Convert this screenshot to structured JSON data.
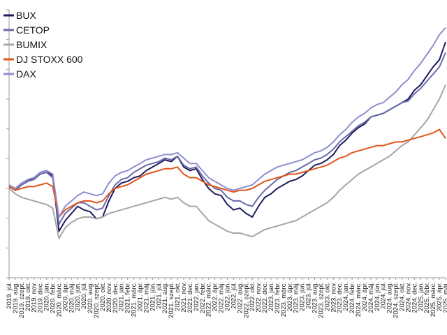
{
  "chart_data": {
    "type": "line",
    "title": "",
    "xlabel": "",
    "ylabel": "",
    "grid": false,
    "legend_position": "top-left",
    "x_tick_labels": [
      "2019. júl.",
      "2019. aug.",
      "2019. szept.",
      "2019. okt.",
      "2019. nov.",
      "2019. dec.",
      "2020. jan.",
      "2020. febr.",
      "2020. márc.",
      "2020. ápr.",
      "2020. máj.",
      "2020. jún.",
      "2020. júl.",
      "2020. aug.",
      "2020. szept.",
      "2020. okt.",
      "2020. nov.",
      "2020. dec.",
      "2021. jan.",
      "2021. febr.",
      "2021. márc.",
      "2021. ápr.",
      "2021. máj.",
      "2021. jún.",
      "2021. júl.",
      "2021. aug.",
      "2021. szept.",
      "2021. okt.",
      "2021. nov.",
      "2021. dec.",
      "2022. jan.",
      "2022. febr.",
      "2022. márc.",
      "2022. ápr.",
      "2022. máj.",
      "2022. jún.",
      "2022. júl.",
      "2022. aug.",
      "2022. szept.",
      "2022. okt.",
      "2022. nov.",
      "2022. dec.",
      "2023. jan.",
      "2023. febr.",
      "2023. márc.",
      "2023. ápr.",
      "2023. máj.",
      "2023. jún.",
      "2023. júl.",
      "2023. aug.",
      "2023. szept.",
      "2023. okt.",
      "2023. nov.",
      "2023. dec.",
      "2024. jan.",
      "2024. febr.",
      "2024. márc.",
      "2024. ápr.",
      "2024. máj.",
      "2024. jún.",
      "2024. júl.",
      "2024. aug.",
      "2024. szept.",
      "2024. okt.",
      "2024. nov.",
      "2024. dec.",
      "2025. jan.",
      "2025. febr.",
      "2025. márc.",
      "2025. ápr.",
      "2025. máj."
    ],
    "y_axis_ticks": 9,
    "series": [
      {
        "name": "BUX",
        "color": "#1c1c5e",
        "values": [
          101,
          99,
          102,
          104,
          106,
          109,
          110,
          107,
          76,
          82,
          86,
          90,
          88,
          87,
          83,
          84,
          93,
          100,
          103,
          104,
          106,
          107,
          110,
          112,
          114,
          116,
          115,
          118,
          112,
          110,
          111,
          105,
          100,
          97,
          96,
          91,
          88,
          89,
          86,
          84,
          90,
          95,
          97,
          100,
          102,
          104,
          105,
          107,
          110,
          113,
          114,
          116,
          119,
          124,
          127,
          131,
          134,
          136,
          140,
          141,
          142,
          144,
          146,
          148,
          150,
          155,
          158,
          163,
          168,
          172,
          182
        ]
      },
      {
        "name": "CETOP",
        "color": "#6a6aaa",
        "values": [
          101,
          99,
          102,
          104,
          105,
          108,
          109,
          106,
          80,
          86,
          89,
          92,
          92,
          90,
          88,
          89,
          96,
          102,
          105,
          106,
          109,
          111,
          113,
          114,
          115,
          117,
          116,
          118,
          113,
          111,
          112,
          107,
          103,
          100,
          99,
          95,
          93,
          93,
          91,
          90,
          95,
          99,
          102,
          105,
          107,
          109,
          110,
          112,
          114,
          116,
          117,
          119,
          122,
          126,
          129,
          132,
          135,
          137,
          140,
          141,
          142,
          144,
          146,
          148,
          149,
          153,
          156,
          160,
          164,
          168,
          176
        ]
      },
      {
        "name": "BUMIX",
        "color": "#a6a6a6",
        "values": [
          100,
          97,
          95,
          94,
          93,
          92,
          91,
          89,
          72,
          78,
          81,
          83,
          84,
          84,
          83,
          84,
          86,
          87,
          88,
          89,
          90,
          91,
          92,
          93,
          94,
          95,
          94,
          95,
          92,
          90,
          90,
          86,
          82,
          80,
          78,
          76,
          75,
          75,
          74,
          73,
          75,
          77,
          78,
          79,
          80,
          81,
          82,
          84,
          86,
          88,
          90,
          92,
          95,
          99,
          102,
          105,
          108,
          110,
          112,
          114,
          116,
          118,
          121,
          124,
          126,
          130,
          134,
          138,
          144,
          150,
          158
        ]
      },
      {
        "name": "DJ STOXX 600",
        "color": "#e0561b",
        "values": [
          101,
          99,
          100,
          101,
          101,
          102,
          103,
          101,
          84,
          88,
          90,
          92,
          93,
          93,
          92,
          93,
          97,
          100,
          101,
          102,
          104,
          106,
          108,
          109,
          110,
          111,
          111,
          112,
          108,
          106,
          106,
          104,
          102,
          101,
          100,
          99,
          98,
          99,
          99,
          100,
          102,
          104,
          105,
          106,
          107,
          108,
          108,
          109,
          110,
          111,
          112,
          113,
          115,
          117,
          118,
          120,
          121,
          122,
          123,
          124,
          124,
          125,
          126,
          126,
          127,
          128,
          129,
          130,
          131,
          133,
          128
        ]
      },
      {
        "name": "DAX",
        "color": "#8e8ecf",
        "values": [
          102,
          100,
          103,
          105,
          106,
          109,
          110,
          108,
          84,
          90,
          93,
          96,
          98,
          97,
          96,
          97,
          103,
          107,
          109,
          110,
          112,
          114,
          116,
          117,
          118,
          119,
          119,
          120,
          117,
          114,
          114,
          110,
          106,
          104,
          102,
          100,
          99,
          100,
          101,
          102,
          105,
          108,
          110,
          112,
          113,
          114,
          115,
          116,
          118,
          120,
          121,
          123,
          126,
          130,
          133,
          137,
          140,
          142,
          145,
          147,
          148,
          151,
          154,
          158,
          161,
          166,
          170,
          175,
          180,
          186,
          190
        ]
      }
    ]
  }
}
